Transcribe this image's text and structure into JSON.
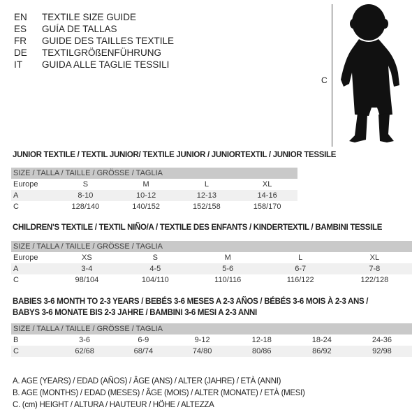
{
  "languages": [
    {
      "code": "EN",
      "name": "TEXTILE SIZE GUIDE"
    },
    {
      "code": "ES",
      "name": "GUÍA DE TALLAS"
    },
    {
      "code": "FR",
      "name": "GUIDE DES TAILLES TEXTILE"
    },
    {
      "code": "DE",
      "name": "TEXTILGRÖßENFÜHRUNG"
    },
    {
      "code": "IT",
      "name": "GUIDA ALLE TAGLIE TESSILI"
    }
  ],
  "figure": {
    "label": "C",
    "icon": "child-silhouette-icon"
  },
  "sections": [
    {
      "title": "JUNIOR TEXTILE / TEXTIL JUNIOR/ TEXTILE JUNIOR / JUNIORTEXTIL / JUNIOR TESSILE",
      "header": "SIZE / TALLA / TAILLE / GRÖSSE / TAGLIA",
      "rows": [
        {
          "label": "Europe",
          "values": [
            "S",
            "M",
            "L",
            "XL"
          ]
        },
        {
          "label": "A",
          "values": [
            "8-10",
            "10-12",
            "12-13",
            "14-16"
          ]
        },
        {
          "label": "C",
          "values": [
            "128/140",
            "140/152",
            "152/158",
            "158/170"
          ]
        }
      ]
    },
    {
      "title": "CHILDREN'S TEXTILE / TEXTIL NIÑO/A / TEXTILE DES ENFANTS / KINDERTEXTIL / BAMBINI TESSILE",
      "header": "SIZE / TALLA / TAILLE / GRÖSSE / TAGLIA",
      "rows": [
        {
          "label": "Europe",
          "values": [
            "XS",
            "S",
            "M",
            "L",
            "XL"
          ]
        },
        {
          "label": "A",
          "values": [
            "3-4",
            "4-5",
            "5-6",
            "6-7",
            "7-8"
          ]
        },
        {
          "label": "C",
          "values": [
            "98/104",
            "104/110",
            "110/116",
            "116/122",
            "122/128"
          ]
        }
      ]
    },
    {
      "title": "BABIES 3-6 MONTH TO 2-3 YEARS / BEBÉS 3-6 MESES A 2-3 AÑOS / BÉBÉS 3-6 MOIS À 2-3 ANS /",
      "title2": "BABYS 3-6 MONATE BIS 2-3 JAHRE / BAMBINI 3-6 MESI A 2-3 ANNI",
      "header": "SIZE / TALLA / TAILLE / GRÖSSE / TAGLIA",
      "rows": [
        {
          "label": "B",
          "values": [
            "3-6",
            "6-9",
            "9-12",
            "12-18",
            "18-24",
            "24-36"
          ]
        },
        {
          "label": "C",
          "values": [
            "62/68",
            "68/74",
            "74/80",
            "80/86",
            "86/92",
            "92/98"
          ]
        }
      ]
    }
  ],
  "legend": [
    "A. AGE (YEARS) / EDAD (AÑOS) / ÂGE (ANS) / ALTER (JAHRE) / ETÀ (ANNI)",
    "B. AGE (MONTHS) / EDAD (MESES) / ÂGE (MOIS) / ALTER (MONATE) / ETÀ (MESI)",
    "C. (cm) HEIGHT / ALTURA / HAUTEUR / HÖHE / ALTEZZA"
  ]
}
